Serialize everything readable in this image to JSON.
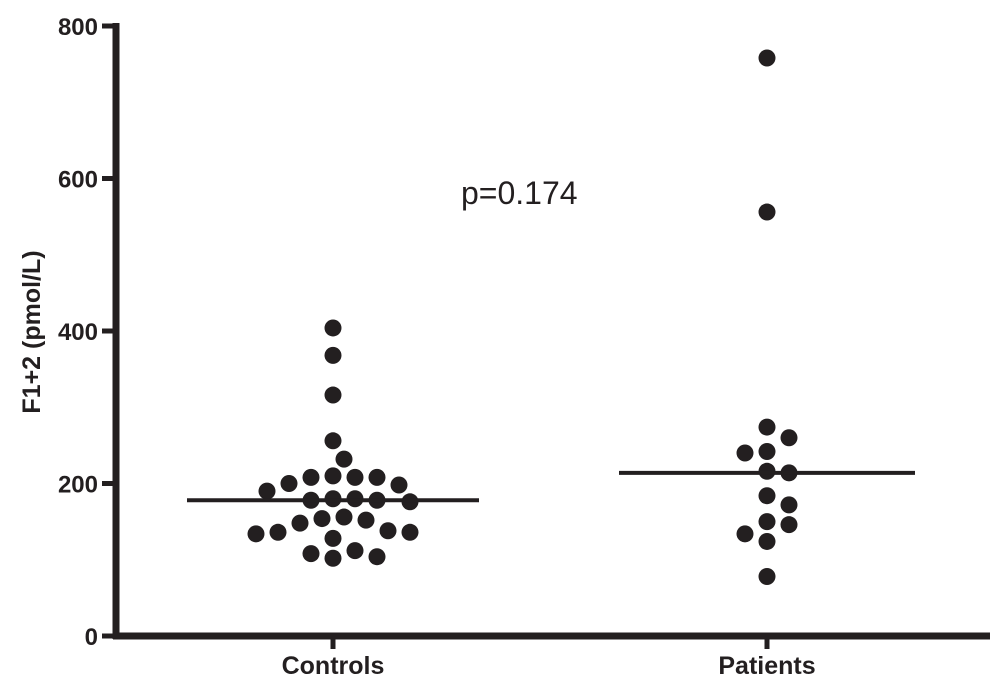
{
  "chart_data": {
    "type": "scatter",
    "ylabel": "F1+2  (pmol/L)",
    "xlabel": "",
    "ylim": [
      0,
      800
    ],
    "yticks": [
      0,
      200,
      400,
      600,
      800
    ],
    "categories": [
      "Controls",
      "Patients"
    ],
    "annotation": "p=0.174",
    "grid": false,
    "series": [
      {
        "category": "Controls",
        "median": 178,
        "values": [
          404,
          368,
          316,
          256,
          232,
          210,
          208,
          208,
          208,
          200,
          198,
          190,
          180,
          180,
          178,
          178,
          176,
          156,
          154,
          152,
          148,
          138,
          136,
          136,
          134,
          128,
          112,
          108,
          104,
          102
        ]
      },
      {
        "category": "Patients",
        "median": 214,
        "values": [
          758,
          556,
          274,
          260,
          242,
          240,
          216,
          214,
          184,
          172,
          150,
          146,
          134,
          124,
          78
        ]
      }
    ],
    "colors": {
      "points": "#231f20",
      "axes": "#231f20",
      "median": "#231f20"
    }
  }
}
